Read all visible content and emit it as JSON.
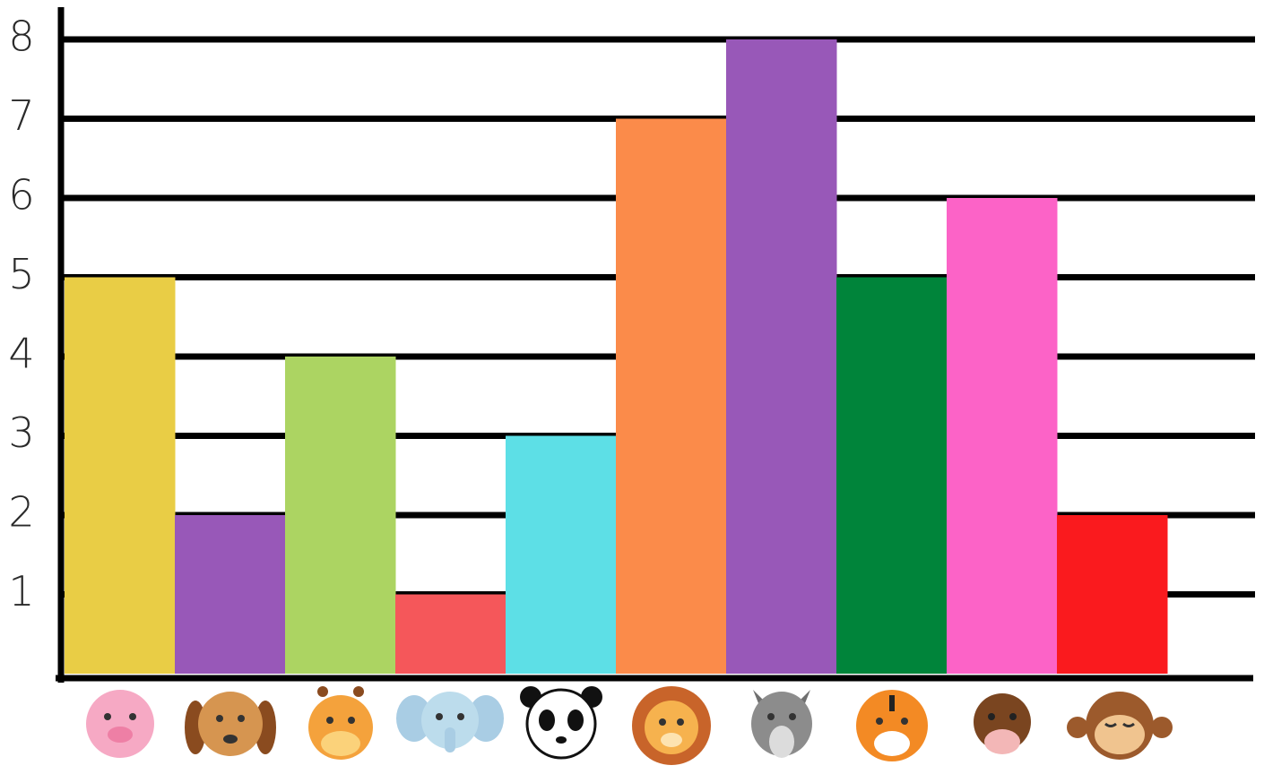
{
  "chart_data": {
    "type": "bar",
    "categories": [
      null,
      null,
      null,
      null,
      null,
      null,
      null,
      null,
      null,
      null
    ],
    "values": [
      5,
      2,
      4,
      1,
      3,
      7,
      8,
      5,
      6,
      2
    ],
    "colors": [
      "#e9cd45",
      "#9858b8",
      "#acd462",
      "#f5575a",
      "#5ddfe6",
      "#fb8b4a",
      "#9858b8",
      "#00843a",
      "#fc63c7",
      "#fa1a1e"
    ],
    "ylim": [
      0,
      8
    ],
    "yticks": [
      1,
      2,
      3,
      4,
      5,
      6,
      7,
      8
    ],
    "grid": true
  }
}
